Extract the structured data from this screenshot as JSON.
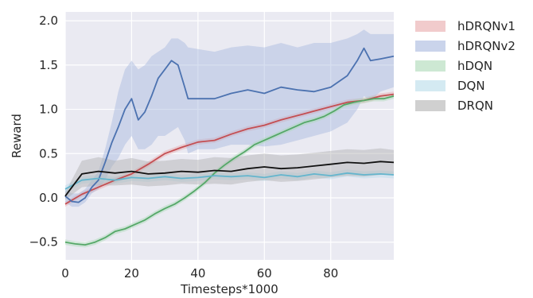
{
  "chart_data": {
    "type": "line",
    "title": "",
    "xlabel": "Timesteps*1000",
    "ylabel": "Reward",
    "xlim": [
      0,
      99
    ],
    "ylim": [
      -0.7,
      2.1
    ],
    "xticks": [
      0,
      20,
      40,
      60,
      80
    ],
    "yticks": [
      -0.5,
      0.0,
      0.5,
      1.0,
      1.5,
      2.0
    ],
    "ytick_labels": [
      "−0.5",
      "0.0",
      "0.5",
      "1.0",
      "1.5",
      "2.0"
    ],
    "grid": true,
    "legend_position": "outside-right",
    "series": [
      {
        "name": "hDRQNv1",
        "color": "#c44e52",
        "band_color": "#e8a9aa",
        "x": [
          0,
          5,
          10,
          15,
          20,
          25,
          30,
          35,
          40,
          45,
          50,
          55,
          60,
          65,
          70,
          75,
          80,
          85,
          90,
          95,
          99
        ],
        "y": [
          -0.07,
          0.04,
          0.12,
          0.2,
          0.27,
          0.38,
          0.5,
          0.57,
          0.63,
          0.65,
          0.72,
          0.78,
          0.82,
          0.88,
          0.93,
          0.98,
          1.03,
          1.08,
          1.1,
          1.15,
          1.17
        ],
        "lower": [
          -0.1,
          0.01,
          0.09,
          0.17,
          0.24,
          0.35,
          0.47,
          0.54,
          0.6,
          0.62,
          0.69,
          0.75,
          0.79,
          0.85,
          0.9,
          0.95,
          1.0,
          1.05,
          1.07,
          1.12,
          1.14
        ],
        "upper": [
          -0.04,
          0.07,
          0.15,
          0.23,
          0.3,
          0.41,
          0.53,
          0.6,
          0.66,
          0.68,
          0.75,
          0.81,
          0.85,
          0.91,
          0.96,
          1.01,
          1.06,
          1.11,
          1.13,
          1.18,
          1.2
        ]
      },
      {
        "name": "hDRQNv2",
        "color": "#4c72b0",
        "band_color": "#a6b8de",
        "x": [
          0,
          2,
          4,
          6,
          8,
          10,
          12,
          14,
          16,
          18,
          20,
          22,
          24,
          26,
          28,
          30,
          32,
          34,
          36,
          37,
          40,
          45,
          50,
          55,
          60,
          65,
          70,
          75,
          80,
          85,
          88,
          90,
          92,
          95,
          99
        ],
        "y": [
          0.02,
          -0.04,
          -0.05,
          0.0,
          0.12,
          0.2,
          0.4,
          0.62,
          0.8,
          1.0,
          1.12,
          0.88,
          0.97,
          1.15,
          1.35,
          1.45,
          1.55,
          1.5,
          1.25,
          1.12,
          1.12,
          1.12,
          1.18,
          1.22,
          1.18,
          1.25,
          1.22,
          1.2,
          1.25,
          1.38,
          1.55,
          1.69,
          1.55,
          1.57,
          1.6
        ],
        "lower": [
          -0.05,
          -0.1,
          -0.1,
          -0.05,
          0.05,
          0.1,
          0.2,
          0.35,
          0.45,
          0.6,
          0.7,
          0.55,
          0.55,
          0.6,
          0.7,
          0.7,
          0.75,
          0.8,
          0.65,
          0.5,
          0.55,
          0.55,
          0.6,
          0.6,
          0.58,
          0.6,
          0.65,
          0.7,
          0.75,
          0.85,
          1.0,
          1.15,
          1.1,
          1.2,
          1.25
        ],
        "upper": [
          0.1,
          0.05,
          0.05,
          0.1,
          0.2,
          0.3,
          0.55,
          0.85,
          1.2,
          1.45,
          1.55,
          1.45,
          1.5,
          1.6,
          1.65,
          1.7,
          1.8,
          1.8,
          1.75,
          1.7,
          1.68,
          1.65,
          1.7,
          1.72,
          1.7,
          1.75,
          1.7,
          1.75,
          1.75,
          1.8,
          1.85,
          1.9,
          1.85,
          1.85,
          1.85
        ]
      },
      {
        "name": "hDQN",
        "color": "#55a868",
        "band_color": "#abd9b5",
        "x": [
          0,
          3,
          6,
          9,
          12,
          15,
          18,
          21,
          24,
          27,
          30,
          33,
          36,
          39,
          42,
          45,
          48,
          51,
          54,
          57,
          60,
          63,
          66,
          69,
          72,
          75,
          78,
          81,
          84,
          87,
          90,
          93,
          96,
          99
        ],
        "y": [
          -0.5,
          -0.52,
          -0.53,
          -0.5,
          -0.45,
          -0.38,
          -0.35,
          -0.3,
          -0.25,
          -0.18,
          -0.12,
          -0.07,
          0.0,
          0.08,
          0.17,
          0.28,
          0.37,
          0.45,
          0.52,
          0.6,
          0.65,
          0.7,
          0.75,
          0.8,
          0.85,
          0.88,
          0.92,
          0.98,
          1.05,
          1.08,
          1.1,
          1.12,
          1.12,
          1.15
        ],
        "lower": [
          -0.53,
          -0.55,
          -0.56,
          -0.53,
          -0.48,
          -0.41,
          -0.38,
          -0.33,
          -0.28,
          -0.21,
          -0.15,
          -0.1,
          -0.03,
          0.05,
          0.14,
          0.25,
          0.34,
          0.42,
          0.49,
          0.57,
          0.62,
          0.67,
          0.72,
          0.77,
          0.82,
          0.85,
          0.89,
          0.95,
          1.02,
          1.05,
          1.07,
          1.09,
          1.09,
          1.12
        ],
        "upper": [
          -0.47,
          -0.49,
          -0.5,
          -0.47,
          -0.42,
          -0.35,
          -0.32,
          -0.27,
          -0.22,
          -0.15,
          -0.09,
          -0.04,
          0.03,
          0.11,
          0.2,
          0.31,
          0.4,
          0.48,
          0.55,
          0.63,
          0.68,
          0.73,
          0.78,
          0.83,
          0.88,
          0.91,
          0.95,
          1.01,
          1.08,
          1.11,
          1.13,
          1.15,
          1.15,
          1.18
        ]
      },
      {
        "name": "DQN",
        "color": "#64b5cd",
        "band_color": "#b7dcea",
        "x": [
          0,
          5,
          10,
          15,
          20,
          25,
          30,
          35,
          40,
          45,
          50,
          55,
          60,
          65,
          70,
          75,
          80,
          85,
          90,
          95,
          99
        ],
        "y": [
          0.1,
          0.2,
          0.22,
          0.2,
          0.23,
          0.22,
          0.24,
          0.22,
          0.23,
          0.25,
          0.24,
          0.25,
          0.23,
          0.26,
          0.24,
          0.27,
          0.25,
          0.28,
          0.26,
          0.27,
          0.26
        ],
        "lower": [
          0.06,
          0.16,
          0.18,
          0.16,
          0.19,
          0.18,
          0.2,
          0.18,
          0.19,
          0.21,
          0.2,
          0.21,
          0.19,
          0.22,
          0.2,
          0.23,
          0.21,
          0.24,
          0.22,
          0.23,
          0.22
        ],
        "upper": [
          0.14,
          0.24,
          0.26,
          0.24,
          0.27,
          0.26,
          0.28,
          0.26,
          0.27,
          0.29,
          0.28,
          0.29,
          0.27,
          0.3,
          0.28,
          0.31,
          0.29,
          0.32,
          0.3,
          0.31,
          0.3
        ]
      },
      {
        "name": "DRQN",
        "color": "#111111",
        "band_color": "#b0b0b0",
        "x": [
          0,
          5,
          10,
          15,
          20,
          25,
          30,
          35,
          40,
          45,
          50,
          55,
          60,
          65,
          70,
          75,
          80,
          85,
          90,
          95,
          99
        ],
        "y": [
          0.02,
          0.27,
          0.3,
          0.28,
          0.3,
          0.27,
          0.28,
          0.3,
          0.29,
          0.31,
          0.3,
          0.33,
          0.35,
          0.33,
          0.34,
          0.36,
          0.38,
          0.4,
          0.39,
          0.41,
          0.4
        ],
        "lower": [
          -0.02,
          0.12,
          0.14,
          0.14,
          0.15,
          0.13,
          0.14,
          0.16,
          0.15,
          0.16,
          0.15,
          0.18,
          0.2,
          0.18,
          0.19,
          0.21,
          0.23,
          0.25,
          0.24,
          0.26,
          0.26
        ],
        "upper": [
          0.06,
          0.42,
          0.46,
          0.42,
          0.45,
          0.41,
          0.42,
          0.44,
          0.43,
          0.46,
          0.45,
          0.48,
          0.5,
          0.48,
          0.49,
          0.51,
          0.53,
          0.55,
          0.54,
          0.56,
          0.54
        ]
      }
    ]
  }
}
